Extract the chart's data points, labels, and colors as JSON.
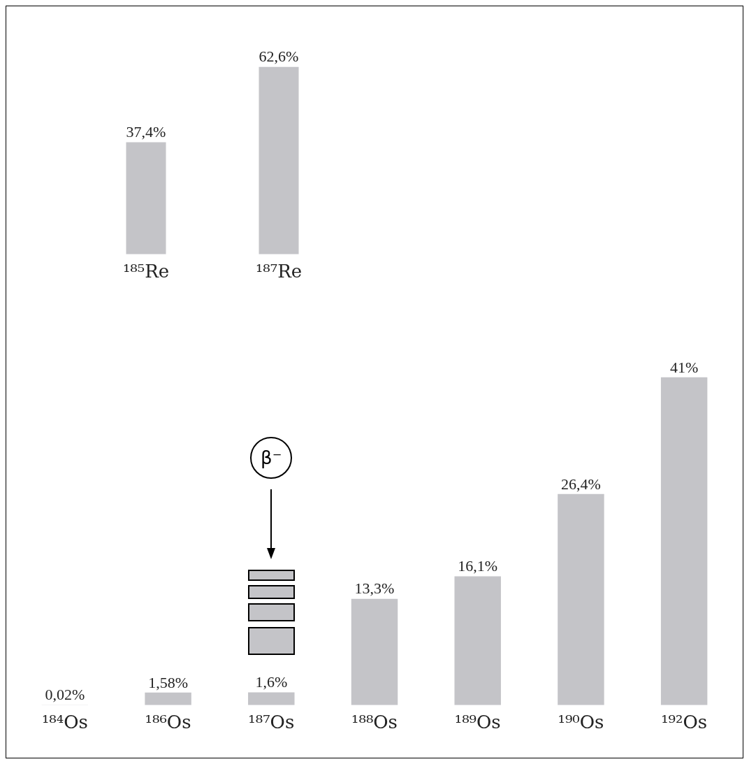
{
  "chart_data": [
    {
      "type": "bar",
      "categories": [
        "¹⁸⁵Re",
        "¹⁸⁷Re"
      ],
      "values": [
        37.4,
        62.6
      ],
      "color": "#c4c4c8",
      "value_labels": [
        "37,4%",
        "62,6%"
      ]
    },
    {
      "type": "bar",
      "categories": [
        "¹⁸⁴Os",
        "¹⁸⁶Os",
        "¹⁸⁷Os",
        "¹⁸⁸Os",
        "¹⁸⁹Os",
        "¹⁹⁰Os",
        "¹⁹²Os"
      ],
      "values": [
        0.02,
        1.58,
        1.6,
        13.3,
        16.1,
        26.4,
        41
      ],
      "color": "#c4c4c8",
      "value_labels": [
        "0,02%",
        "1,58%",
        "1,6%",
        "13,3%",
        "16,1%",
        "26,4%",
        "41%"
      ],
      "annotations": [
        {
          "text": "β⁻",
          "x": "¹⁸⁷Os"
        }
      ]
    }
  ]
}
